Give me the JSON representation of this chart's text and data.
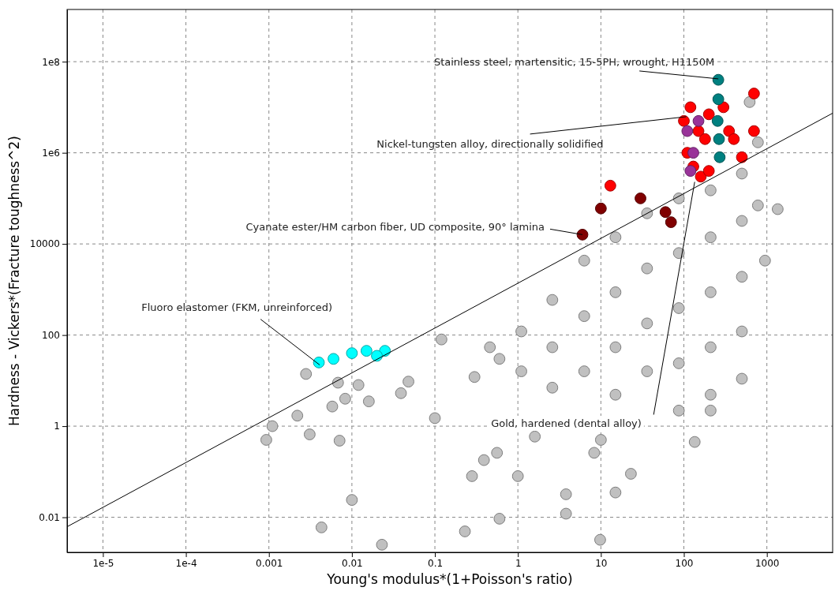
{
  "chart_data": {
    "type": "scatter",
    "xlabel": "Young's modulus*(1+Poisson's ratio)",
    "ylabel": "Hardness - Vickers*(Fracture toughness^2)",
    "xlim": [
      3.7e-06,
      6200
    ],
    "ylim": [
      0.0017,
      1400000000.0
    ],
    "log": "xy",
    "grid": true,
    "marker": "circle",
    "xticks": [
      {
        "value": 1e-05,
        "label": "1e-5"
      },
      {
        "value": 0.0001,
        "label": "1e-4"
      },
      0.001,
      0.01,
      0.1,
      1,
      10,
      100,
      1000
    ],
    "yticks": [
      0.01,
      1,
      100,
      10000,
      {
        "value": 1000000,
        "label": "1e6"
      },
      {
        "value": 100000000,
        "label": "1e8"
      }
    ],
    "series": [
      {
        "color": "#c0c0c0",
        "x": [
          0.0028,
          0.0068,
          0.012,
          0.0083,
          0.016,
          0.0058,
          0.0022,
          0.0011,
          0.00093,
          0.0031,
          0.0071,
          0.039,
          0.048,
          0.12,
          0.1,
          0.01,
          0.0043,
          0.023,
          0.28,
          0.39,
          0.56,
          1,
          3.8,
          3.8,
          8.3,
          15,
          9.8,
          1.6,
          0.6,
          0.23,
          10,
          2.6,
          0.6,
          0.3,
          0.46,
          1.1,
          1.1,
          2.6,
          2.6,
          6.3,
          6.3,
          6.3,
          15,
          15,
          15,
          15,
          36,
          36,
          36,
          36,
          87,
          87,
          87,
          87,
          87,
          210,
          210,
          210,
          210,
          210,
          500,
          500,
          500,
          500,
          500,
          780,
          950,
          1350,
          780,
          620,
          210,
          135,
          23
        ],
        "values": [
          14,
          9,
          8,
          4,
          3.5,
          2.7,
          1.7,
          1,
          0.5,
          0.66,
          0.48,
          5.3,
          9.5,
          80,
          1.5,
          0.024,
          0.006,
          0.0025,
          0.08,
          0.18,
          0.26,
          0.08,
          0.032,
          0.012,
          0.26,
          0.035,
          0.0032,
          0.59,
          0.0093,
          0.0049,
          0.5,
          7,
          30,
          12,
          54,
          120,
          16,
          590,
          54,
          4300,
          260,
          16,
          14000,
          870,
          54,
          4.9,
          47000,
          2900,
          180,
          16,
          100000,
          6300,
          390,
          24,
          2.2,
          150000,
          14000,
          870,
          54,
          4.9,
          350000,
          32000,
          1900,
          120,
          11,
          70000,
          4300,
          58000,
          1700000,
          13000000,
          2.2,
          0.45,
          0.09
        ]
      },
      {
        "color": "#800000",
        "x": [
          6,
          10,
          30,
          60,
          70
        ],
        "values": [
          16000,
          60000,
          100000,
          50000,
          30000
        ]
      },
      {
        "color": "#ff0000",
        "x": [
          100,
          120,
          150,
          110,
          130,
          160,
          200,
          180,
          300,
          350,
          400,
          700,
          700,
          500,
          200,
          13
        ],
        "values": [
          5000000,
          10000000,
          3000000,
          1000000,
          500000,
          300000,
          400000,
          2000000,
          10000000,
          3000000,
          2000000,
          20000000,
          3000000,
          800000,
          7000000,
          190000
        ]
      },
      {
        "color": "#993399",
        "x": [
          110,
          130,
          150,
          120
        ],
        "values": [
          3000000,
          1000000,
          5000000,
          400000
        ]
      },
      {
        "color": "#008080",
        "x": [
          260,
          260,
          255,
          265,
          270
        ],
        "values": [
          40000000,
          15000000,
          5000000,
          2000000,
          800000
        ]
      },
      {
        "color": "#00ffff",
        "x": [
          0.004,
          0.006,
          0.01,
          0.015,
          0.025,
          0.02
        ],
        "values": [
          25,
          30,
          40,
          45,
          45,
          35
        ]
      },
      {
        "type": "line",
        "marker": "none",
        "color": "#000000",
        "x": [
          3.7e-06,
          6200
        ],
        "values": [
          0.0062,
          7400000
        ]
      }
    ],
    "annotations": [
      {
        "text": "Stainless steel, martensitic, 15-5PH, wrought, H1150M",
        "x": 260,
        "y": 42000000
      },
      {
        "text": "Nickel-tungsten alloy, directionally solidified",
        "x": 107,
        "y": 6200000
      },
      {
        "text": "Cyanate ester/HM carbon fiber, UD composite, 90° lamina",
        "x": 6,
        "y": 16000
      },
      {
        "text": "Fluoro elastomer (FKM, unreinforced)",
        "x": 0.0041,
        "y": 22
      },
      {
        "text": "Gold, hardened (dental alloy)",
        "x": 135,
        "y": 230000
      }
    ]
  }
}
